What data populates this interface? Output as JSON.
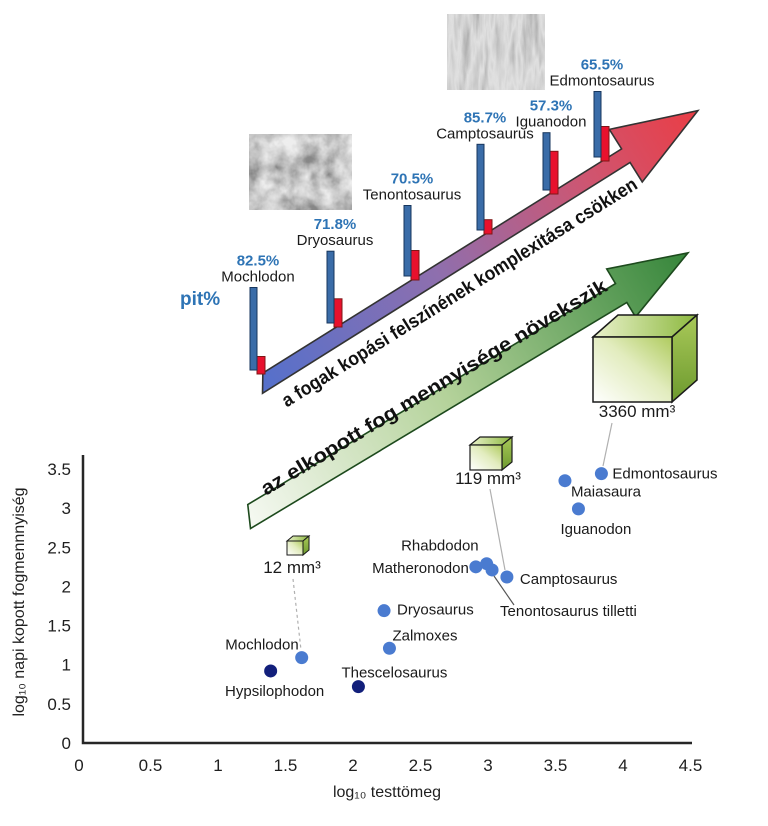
{
  "upper_diagram": {
    "pit_label": "pit%",
    "red_arrow_text": "a fogak kopási felszínének komplexitása csökken",
    "green_arrow_text": "az elkopott fog mennyisége növekszik",
    "species_bars": [
      {
        "name": "Mochlodon",
        "pit_pct": 82.5,
        "pct_label": "82.5%"
      },
      {
        "name": "Dryosaurus",
        "pit_pct": 71.8,
        "pct_label": "71.8%"
      },
      {
        "name": "Tenontosaurus",
        "pit_pct": 70.5,
        "pct_label": "70.5%"
      },
      {
        "name": "Camptosaurus",
        "pit_pct": 85.7,
        "pct_label": "85.7%"
      },
      {
        "name": "Iguanodon",
        "pit_pct": 57.3,
        "pct_label": "57.3%"
      },
      {
        "name": "Edmontosaurus",
        "pit_pct": 65.5,
        "pct_label": "65.5%"
      }
    ],
    "cubes": [
      {
        "label": "12 mm³",
        "volume_mm3": 12,
        "connects_to": "Mochlodon"
      },
      {
        "label": "119 mm³",
        "volume_mm3": 119,
        "connects_to": "Camptosaurus"
      },
      {
        "label": "3360 mm³",
        "volume_mm3": 3360,
        "connects_to": "Edmontosaurus"
      }
    ]
  },
  "chart_data": {
    "type": "scatter",
    "title": "",
    "xlabel": "log₁₀ testtömeg",
    "ylabel": "log₁₀ napi kopott fogmennnyiség",
    "xlim": [
      0,
      4.5
    ],
    "ylim": [
      0,
      3.5
    ],
    "xticks": [
      0,
      0.5,
      1,
      1.5,
      2,
      2.5,
      3,
      3.5,
      4,
      4.5
    ],
    "yticks": [
      0,
      0.5,
      1,
      1.5,
      2,
      2.5,
      3,
      3.5
    ],
    "grid": false,
    "legend": "none",
    "points": [
      {
        "name": "Hypsilophodon",
        "x": 1.39,
        "y": 0.92,
        "color": "dark"
      },
      {
        "name": "Mochlodon",
        "x": 1.62,
        "y": 1.09,
        "color": "light"
      },
      {
        "name": "Thescelosaurus",
        "x": 2.04,
        "y": 0.72,
        "color": "dark"
      },
      {
        "name": "Zalmoxes",
        "x": 2.27,
        "y": 1.21,
        "color": "light"
      },
      {
        "name": "Dryosaurus",
        "x": 2.23,
        "y": 1.69,
        "color": "light"
      },
      {
        "name": "Matheronodon",
        "x": 2.91,
        "y": 2.25,
        "color": "light"
      },
      {
        "name": "Rhabdodon",
        "x": 2.99,
        "y": 2.29,
        "color": "light"
      },
      {
        "name": "Tenontosaurus tilletti",
        "x": 3.03,
        "y": 2.21,
        "color": "light"
      },
      {
        "name": "Camptosaurus",
        "x": 3.14,
        "y": 2.12,
        "color": "light"
      },
      {
        "name": "Iguanodon",
        "x": 3.67,
        "y": 2.99,
        "color": "light"
      },
      {
        "name": "Maiasaura",
        "x": 3.57,
        "y": 3.35,
        "color": "light"
      },
      {
        "name": "Edmontosaurus",
        "x": 3.84,
        "y": 3.44,
        "color": "light"
      }
    ]
  },
  "colors": {
    "accent_blue_text": "#2E74B5",
    "bar_blue": "#3A6CA8",
    "bar_blue_stroke": "#17365D",
    "bar_red": "#E8112D",
    "bar_red_stroke": "#7F1616",
    "point_light": "#4A7BD0",
    "point_dark": "#121F7B",
    "axis": "#262626",
    "label_text": "#1A1A1A"
  }
}
